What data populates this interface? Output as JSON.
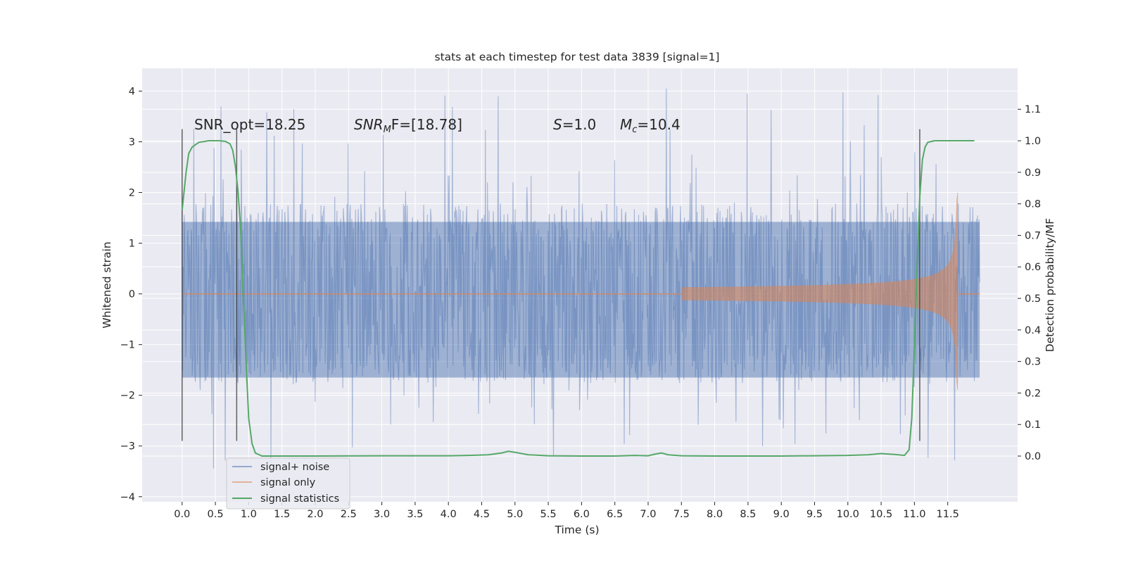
{
  "chart_data": {
    "type": "line",
    "title": "stats at each timestep for test data 3839 [signal=1]",
    "xlabel": "Time (s)",
    "ylabel_left": "Whitened strain",
    "ylabel_right": "Detection probability/MF",
    "xlim": [
      -0.6,
      12.55
    ],
    "ylim_left": [
      -4.1,
      4.45
    ],
    "ylim_right": [
      -0.145,
      1.23
    ],
    "x_ticks": [
      "0.0",
      "0.5",
      "1.0",
      "1.5",
      "2.0",
      "2.5",
      "3.0",
      "3.5",
      "4.0",
      "4.5",
      "5.0",
      "5.5",
      "6.0",
      "6.5",
      "7.0",
      "7.5",
      "8.0",
      "8.5",
      "9.0",
      "9.5",
      "10.0",
      "10.5",
      "11.0",
      "11.5"
    ],
    "y_ticks_left": [
      "4",
      "3",
      "2",
      "1",
      "0",
      "−1",
      "−2",
      "−3",
      "−4"
    ],
    "y_ticks_right": [
      "1.1",
      "1.0",
      "0.9",
      "0.8",
      "0.7",
      "0.6",
      "0.5",
      "0.4",
      "0.3",
      "0.2",
      "0.1",
      "0.0"
    ],
    "annotations": {
      "snr_opt": "SNR_opt=18.25",
      "snr_mf_name": "SNR",
      "snr_mf_sub": "M",
      "snr_mf_tail": "F=[18.78]",
      "s_name": "S",
      "s_value": "=1.0",
      "mc_name": "M",
      "mc_sub": "c",
      "mc_value": "=10.4"
    },
    "legend": {
      "position": "lower-left",
      "entries": [
        "signal+ noise",
        "signal only",
        "signal statistics"
      ]
    },
    "grid": true,
    "series": [
      {
        "name": "signal+ noise",
        "axis": "left",
        "color": "#4C72B0",
        "x_range": [
          0.0,
          11.98
        ],
        "typical_band": [
          -1.7,
          1.7
        ],
        "peak_range": [
          -3.45,
          4.1
        ]
      },
      {
        "name": "signal only",
        "axis": "left",
        "color": "#DD8452",
        "chirp_start": 7.5,
        "merger_time": 11.65,
        "peak_amplitude": 2.2,
        "x_range": [
          0.0,
          11.98
        ]
      },
      {
        "name": "signal statistics",
        "axis": "right",
        "color": "#55A868",
        "x": [
          0.0,
          0.02,
          0.06,
          0.1,
          0.15,
          0.25,
          0.4,
          0.55,
          0.65,
          0.72,
          0.76,
          0.8,
          0.84,
          0.88,
          0.92,
          0.96,
          1.0,
          1.05,
          1.1,
          1.2,
          1.5,
          2.0,
          3.0,
          4.0,
          4.3,
          4.6,
          4.8,
          4.9,
          5.0,
          5.2,
          5.5,
          6.0,
          6.5,
          6.8,
          7.0,
          7.1,
          7.2,
          7.3,
          7.5,
          8.0,
          9.0,
          10.0,
          10.3,
          10.5,
          10.7,
          10.85,
          10.92,
          10.96,
          11.0,
          11.04,
          11.08,
          11.12,
          11.16,
          11.2,
          11.3,
          11.5,
          11.7,
          11.9
        ],
        "y": [
          0.78,
          0.82,
          0.9,
          0.96,
          0.98,
          0.995,
          1.0,
          1.0,
          0.998,
          0.99,
          0.97,
          0.92,
          0.84,
          0.72,
          0.5,
          0.3,
          0.12,
          0.04,
          0.01,
          0.0,
          0.0,
          0.0,
          0.001,
          0.001,
          0.002,
          0.004,
          0.01,
          0.015,
          0.012,
          0.004,
          0.001,
          0.0,
          0.0,
          0.002,
          0.001,
          0.006,
          0.01,
          0.004,
          0.001,
          0.0,
          0.0,
          0.002,
          0.004,
          0.008,
          0.005,
          0.002,
          0.02,
          0.12,
          0.35,
          0.6,
          0.82,
          0.94,
          0.98,
          0.995,
          1.0,
          1.0,
          1.0,
          1.0
        ]
      }
    ],
    "markers": [
      {
        "x": 0.0,
        "ymin": -2.9,
        "ymax": 3.25
      },
      {
        "x": 0.82,
        "ymin": -2.9,
        "ymax": 3.25
      },
      {
        "x": 11.08,
        "ymin": -2.9,
        "ymax": 3.25
      }
    ]
  }
}
